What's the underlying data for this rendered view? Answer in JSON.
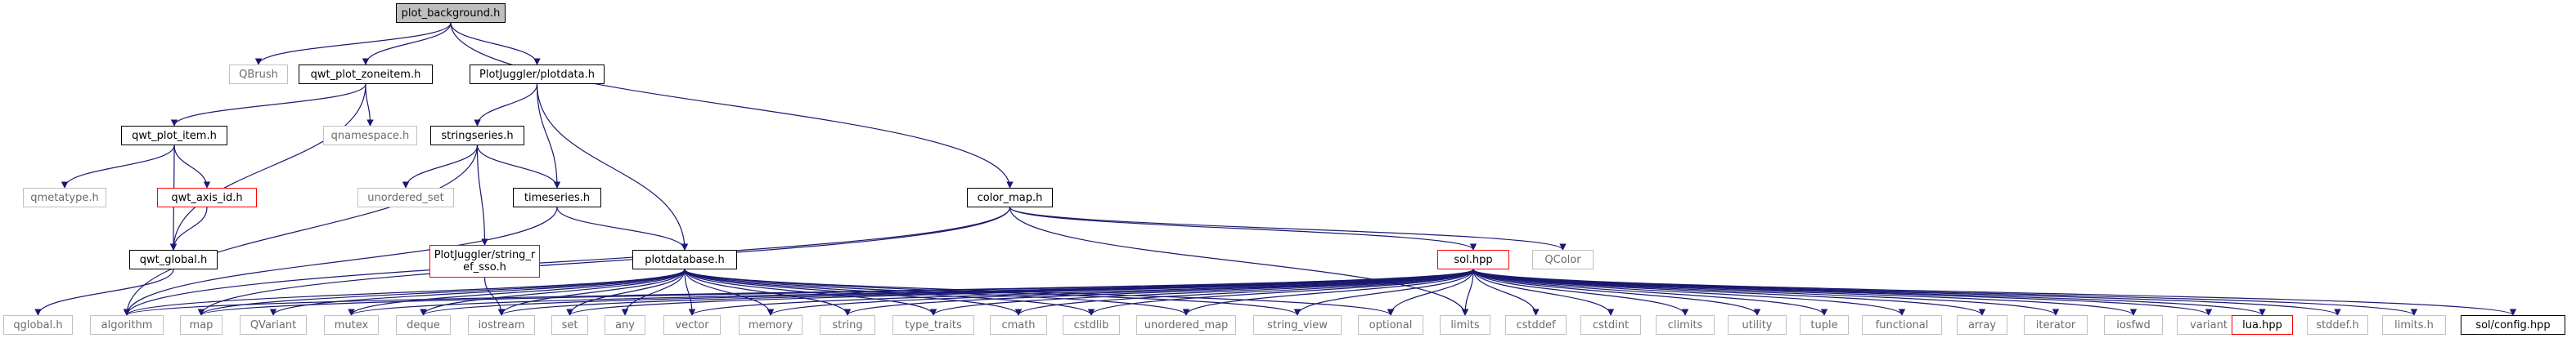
{
  "graph": {
    "nodes": [
      {
        "id": "plot_background",
        "label": "plot_background.h",
        "style": "root"
      },
      {
        "id": "QBrush",
        "label": "QBrush",
        "style": "gray"
      },
      {
        "id": "qwt_plot_zoneitem",
        "label": "qwt_plot_zoneitem.h",
        "style": "normal"
      },
      {
        "id": "plotdata",
        "label": "PlotJuggler/plotdata.h",
        "style": "normal"
      },
      {
        "id": "color_map",
        "label": "color_map.h",
        "style": "normal"
      },
      {
        "id": "qwt_plot_item",
        "label": "qwt_plot_item.h",
        "style": "normal"
      },
      {
        "id": "qnamespace",
        "label": "qnamespace.h",
        "style": "gray"
      },
      {
        "id": "stringseries",
        "label": "stringseries.h",
        "style": "normal"
      },
      {
        "id": "qmetatype",
        "label": "qmetatype.h",
        "style": "gray"
      },
      {
        "id": "qwt_axis_id",
        "label": "qwt_axis_id.h",
        "style": "red"
      },
      {
        "id": "unordered_set",
        "label": "unordered_set",
        "style": "gray"
      },
      {
        "id": "timeseries",
        "label": "timeseries.h",
        "style": "normal"
      },
      {
        "id": "qwt_global",
        "label": "qwt_global.h",
        "style": "normal"
      },
      {
        "id": "string_ref_sso",
        "label": "PlotJuggler/string_ref_sso.h",
        "style": "red"
      },
      {
        "id": "plotdatabase",
        "label": "plotdatabase.h",
        "style": "normal"
      },
      {
        "id": "sol",
        "label": "sol.hpp",
        "style": "red"
      },
      {
        "id": "QColor",
        "label": "QColor",
        "style": "gray"
      },
      {
        "id": "qglobal",
        "label": "qglobal.h",
        "style": "gray"
      },
      {
        "id": "algorithm",
        "label": "algorithm",
        "style": "gray"
      },
      {
        "id": "map",
        "label": "map",
        "style": "gray"
      },
      {
        "id": "QVariant",
        "label": "QVariant",
        "style": "gray"
      },
      {
        "id": "mutex",
        "label": "mutex",
        "style": "gray"
      },
      {
        "id": "deque",
        "label": "deque",
        "style": "gray"
      },
      {
        "id": "iostream",
        "label": "iostream",
        "style": "gray"
      },
      {
        "id": "set",
        "label": "set",
        "style": "gray"
      },
      {
        "id": "any",
        "label": "any",
        "style": "gray"
      },
      {
        "id": "vector",
        "label": "vector",
        "style": "gray"
      },
      {
        "id": "memory",
        "label": "memory",
        "style": "gray"
      },
      {
        "id": "string",
        "label": "string",
        "style": "gray"
      },
      {
        "id": "type_traits",
        "label": "type_traits",
        "style": "gray"
      },
      {
        "id": "cmath",
        "label": "cmath",
        "style": "gray"
      },
      {
        "id": "cstdlib",
        "label": "cstdlib",
        "style": "gray"
      },
      {
        "id": "unordered_map",
        "label": "unordered_map",
        "style": "gray"
      },
      {
        "id": "string_view",
        "label": "string_view",
        "style": "gray"
      },
      {
        "id": "optional",
        "label": "optional",
        "style": "gray"
      },
      {
        "id": "limits",
        "label": "limits",
        "style": "gray"
      },
      {
        "id": "cstddef",
        "label": "cstddef",
        "style": "gray"
      },
      {
        "id": "cstdint",
        "label": "cstdint",
        "style": "gray"
      },
      {
        "id": "climits",
        "label": "climits",
        "style": "gray"
      },
      {
        "id": "utility",
        "label": "utility",
        "style": "gray"
      },
      {
        "id": "tuple",
        "label": "tuple",
        "style": "gray"
      },
      {
        "id": "functional",
        "label": "functional",
        "style": "gray"
      },
      {
        "id": "array",
        "label": "array",
        "style": "gray"
      },
      {
        "id": "iterator",
        "label": "iterator",
        "style": "gray"
      },
      {
        "id": "iosfwd",
        "label": "iosfwd",
        "style": "gray"
      },
      {
        "id": "variant",
        "label": "variant",
        "style": "gray"
      },
      {
        "id": "lua",
        "label": "lua.hpp",
        "style": "red"
      },
      {
        "id": "stddef",
        "label": "stddef.h",
        "style": "gray"
      },
      {
        "id": "limits_h",
        "label": "limits.h",
        "style": "gray"
      },
      {
        "id": "sol_config",
        "label": "sol/config.hpp",
        "style": "normal"
      }
    ],
    "edges": [
      [
        "plot_background",
        "QBrush"
      ],
      [
        "plot_background",
        "qwt_plot_zoneitem"
      ],
      [
        "plot_background",
        "plotdata"
      ],
      [
        "plot_background",
        "color_map"
      ],
      [
        "qwt_plot_zoneitem",
        "qwt_plot_item"
      ],
      [
        "qwt_plot_zoneitem",
        "qnamespace"
      ],
      [
        "qwt_plot_zoneitem",
        "qwt_global"
      ],
      [
        "qwt_plot_item",
        "qmetatype"
      ],
      [
        "qwt_plot_item",
        "qwt_axis_id"
      ],
      [
        "qwt_plot_item",
        "qwt_global"
      ],
      [
        "qwt_axis_id",
        "qwt_global"
      ],
      [
        "qwt_global",
        "qglobal"
      ],
      [
        "plotdata",
        "stringseries"
      ],
      [
        "plotdata",
        "timeseries"
      ],
      [
        "plotdata",
        "plotdatabase"
      ],
      [
        "stringseries",
        "unordered_set"
      ],
      [
        "stringseries",
        "timeseries"
      ],
      [
        "stringseries",
        "string_ref_sso"
      ],
      [
        "stringseries",
        "algorithm"
      ],
      [
        "timeseries",
        "plotdatabase"
      ],
      [
        "timeseries",
        "algorithm"
      ],
      [
        "string_ref_sso",
        "iostream"
      ],
      [
        "color_map",
        "QColor"
      ],
      [
        "color_map",
        "sol"
      ],
      [
        "color_map",
        "map"
      ],
      [
        "color_map",
        "algorithm"
      ],
      [
        "color_map",
        "limits"
      ],
      [
        "plotdatabase",
        "algorithm"
      ],
      [
        "plotdatabase",
        "map"
      ],
      [
        "plotdatabase",
        "QVariant"
      ],
      [
        "plotdatabase",
        "mutex"
      ],
      [
        "plotdatabase",
        "deque"
      ],
      [
        "plotdatabase",
        "iostream"
      ],
      [
        "plotdatabase",
        "set"
      ],
      [
        "plotdatabase",
        "any"
      ],
      [
        "plotdatabase",
        "vector"
      ],
      [
        "plotdatabase",
        "memory"
      ],
      [
        "plotdatabase",
        "string"
      ],
      [
        "plotdatabase",
        "type_traits"
      ],
      [
        "plotdatabase",
        "cmath"
      ],
      [
        "plotdatabase",
        "cstdlib"
      ],
      [
        "plotdatabase",
        "unordered_map"
      ],
      [
        "plotdatabase",
        "string_view"
      ],
      [
        "plotdatabase",
        "optional"
      ],
      [
        "sol",
        "algorithm"
      ],
      [
        "sol",
        "map"
      ],
      [
        "sol",
        "mutex"
      ],
      [
        "sol",
        "deque"
      ],
      [
        "sol",
        "iostream"
      ],
      [
        "sol",
        "set"
      ],
      [
        "sol",
        "vector"
      ],
      [
        "sol",
        "memory"
      ],
      [
        "sol",
        "string"
      ],
      [
        "sol",
        "type_traits"
      ],
      [
        "sol",
        "cmath"
      ],
      [
        "sol",
        "cstdlib"
      ],
      [
        "sol",
        "unordered_map"
      ],
      [
        "sol",
        "string_view"
      ],
      [
        "sol",
        "optional"
      ],
      [
        "sol",
        "limits"
      ],
      [
        "sol",
        "cstddef"
      ],
      [
        "sol",
        "cstdint"
      ],
      [
        "sol",
        "climits"
      ],
      [
        "sol",
        "utility"
      ],
      [
        "sol",
        "tuple"
      ],
      [
        "sol",
        "functional"
      ],
      [
        "sol",
        "array"
      ],
      [
        "sol",
        "iterator"
      ],
      [
        "sol",
        "iosfwd"
      ],
      [
        "sol",
        "variant"
      ],
      [
        "sol",
        "lua"
      ],
      [
        "sol",
        "stddef"
      ],
      [
        "sol",
        "limits_h"
      ],
      [
        "sol",
        "sol_config"
      ]
    ]
  }
}
